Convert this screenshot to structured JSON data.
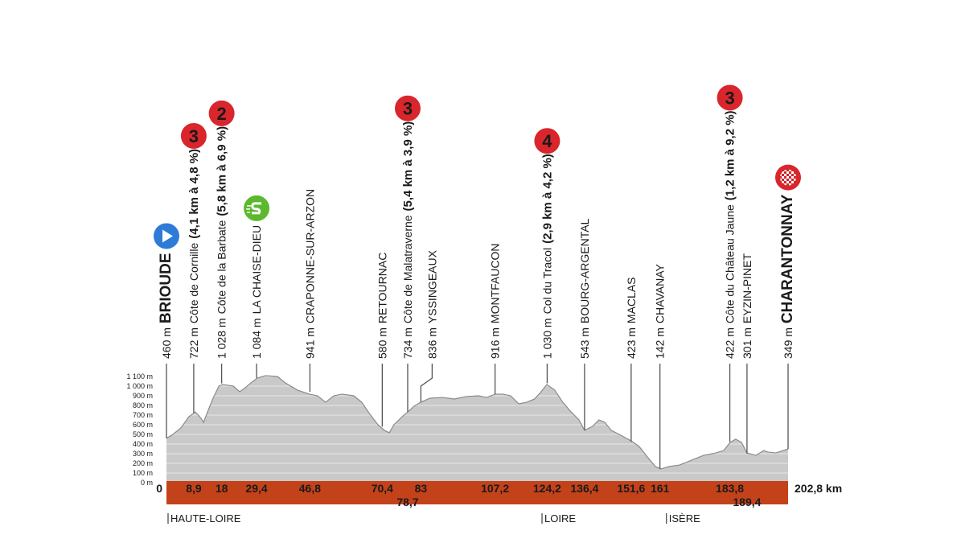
{
  "chart_data": {
    "type": "area",
    "color": "#c9c9c9",
    "grid": true,
    "xlim": [
      0,
      202.8
    ],
    "ylim": [
      0,
      1100
    ],
    "yticks": [
      {
        "value": 0,
        "label": "0 m"
      },
      {
        "value": 100,
        "label": "100 m"
      },
      {
        "value": 200,
        "label": "200 m"
      },
      {
        "value": 300,
        "label": "300 m"
      },
      {
        "value": 400,
        "label": "400 m"
      },
      {
        "value": 500,
        "label": "500 m"
      },
      {
        "value": 600,
        "label": "600 m"
      },
      {
        "value": 700,
        "label": "700 m"
      },
      {
        "value": 800,
        "label": "800 m"
      },
      {
        "value": 900,
        "label": "900 m"
      },
      {
        "value": 1000,
        "label": "1 000 m"
      },
      {
        "value": 1100,
        "label": "1 100 m"
      }
    ],
    "xticks": [
      0,
      {
        "value": 8.9,
        "label": "8,9"
      },
      18,
      {
        "value": 29.4,
        "label": "29,4"
      },
      {
        "value": 46.8,
        "label": "46,8"
      },
      {
        "value": 70.4,
        "label": "70,4"
      },
      {
        "value": 78.7,
        "label": "78,7"
      },
      83,
      {
        "value": 107.2,
        "label": "107,2"
      },
      {
        "value": 124.2,
        "label": "124,2"
      },
      {
        "value": 136.4,
        "label": "136,4"
      },
      {
        "value": 151.6,
        "label": "151,6"
      },
      161,
      {
        "value": 183.8,
        "label": "183,8"
      },
      {
        "value": 189.4,
        "label": "189,4"
      },
      {
        "value": 202.8,
        "label": "202,8 km"
      }
    ],
    "x": [
      0,
      2.1,
      4.7,
      7.3,
      9.4,
      11.3,
      12.1,
      13.4,
      15.2,
      17.1,
      18.4,
      21.8,
      23.9,
      25.7,
      27.5,
      29.6,
      32.3,
      36.2,
      38.8,
      42.8,
      46.7,
      49.3,
      51.9,
      54.6,
      57.2,
      61.1,
      63.7,
      66.4,
      69.0,
      71.1,
      72.7,
      74.2,
      76.9,
      78.7,
      80.8,
      82.9,
      86.0,
      90.0,
      93.9,
      97.8,
      101.8,
      104.4,
      107.3,
      109.7,
      112.3,
      114.9,
      117.5,
      120.1,
      122.0,
      124.1,
      126.7,
      129.3,
      132.0,
      134.6,
      136.4,
      139.0,
      141.1,
      143.0,
      145.1,
      147.7,
      151.6,
      154.2,
      156.9,
      159.5,
      161.3,
      163.9,
      167.4,
      171.3,
      175.2,
      179.2,
      181.8,
      183.9,
      185.7,
      187.6,
      189.4,
      192.3,
      194.9,
      196.2,
      198.8,
      202.8
    ],
    "values": [
      460,
      500,
      567,
      683,
      733,
      667,
      625,
      733,
      875,
      1000,
      1017,
      1000,
      942,
      983,
      1033,
      1083,
      1108,
      1100,
      1033,
      958,
      917,
      900,
      833,
      900,
      917,
      900,
      833,
      708,
      600,
      542,
      517,
      600,
      683,
      733,
      792,
      833,
      875,
      883,
      867,
      892,
      900,
      883,
      917,
      917,
      900,
      817,
      833,
      867,
      933,
      1017,
      958,
      833,
      733,
      650,
      542,
      583,
      650,
      625,
      542,
      500,
      433,
      375,
      267,
      167,
      142,
      167,
      183,
      233,
      283,
      308,
      333,
      417,
      450,
      417,
      308,
      283,
      333,
      317,
      308,
      349
    ],
    "points": [
      {
        "km": 0,
        "elevation": {
          "value": 460,
          "label": "460 m"
        },
        "name": "BRIOUDE",
        "marker": "start"
      },
      {
        "km": 8.9,
        "elevation": {
          "value": 722,
          "label": "722 m"
        },
        "name": "Côte de Cornille",
        "climb": "(4,1 km à 4,8 %)",
        "category": 3
      },
      {
        "km": 18,
        "elevation": {
          "value": 1028,
          "label": "1 028 m"
        },
        "name": "Côte de la Barbate",
        "climb": "(5,8 km à 6,9 %)",
        "category": 2
      },
      {
        "km": 29.4,
        "elevation": {
          "value": 1084,
          "label": "1 084 m"
        },
        "name": "LA CHAISE-DIEU",
        "marker": "sprint"
      },
      {
        "km": 46.8,
        "elevation": {
          "value": 941,
          "label": "941 m"
        },
        "name": "CRAPONNE-SUR-ARZON"
      },
      {
        "km": 70.4,
        "elevation": {
          "value": 580,
          "label": "580 m"
        },
        "name": "RETOURNAC"
      },
      {
        "km": 78.7,
        "elevation": {
          "value": 734,
          "label": "734 m"
        },
        "name": "Côte de Malatraverne",
        "climb": "(5,4 km à 3,9 %)",
        "category": 3
      },
      {
        "km": 83,
        "elevation": {
          "value": 836,
          "label": "836 m"
        },
        "name": "YSSINGEAUX"
      },
      {
        "km": 107.2,
        "elevation": {
          "value": 916,
          "label": "916 m"
        },
        "name": "MONTFAUCON"
      },
      {
        "km": 124.2,
        "elevation": {
          "value": 1030,
          "label": "1 030 m"
        },
        "name": "Col du Tracol",
        "climb": "(2,9 km à 4,2 %)",
        "category": 4
      },
      {
        "km": 136.4,
        "elevation": {
          "value": 543,
          "label": "543 m"
        },
        "name": "BOURG-ARGENTAL"
      },
      {
        "km": 151.6,
        "elevation": {
          "value": 423,
          "label": "423 m"
        },
        "name": "MACLAS"
      },
      {
        "km": 161,
        "elevation": {
          "value": 142,
          "label": "142 m"
        },
        "name": "CHAVANAY"
      },
      {
        "km": 183.8,
        "elevation": {
          "value": 422,
          "label": "422 m"
        },
        "name": "Côte du Château Jaune",
        "climb": "(1,2 km à 9,2 %)",
        "category": 3
      },
      {
        "km": 189.4,
        "elevation": {
          "value": 301,
          "label": "301 m"
        },
        "name": "EYZIN-PINET"
      },
      {
        "km": 202.8,
        "elevation": {
          "value": 349,
          "label": "349 m"
        },
        "name": "CHARANTONNAY",
        "marker": "finish"
      }
    ],
    "regions": [
      {
        "km": 0,
        "name": "HAUTE-LOIRE"
      },
      {
        "km": 122,
        "name": "LOIRE"
      },
      {
        "km": 162.6,
        "name": "ISÈRE"
      }
    ]
  }
}
